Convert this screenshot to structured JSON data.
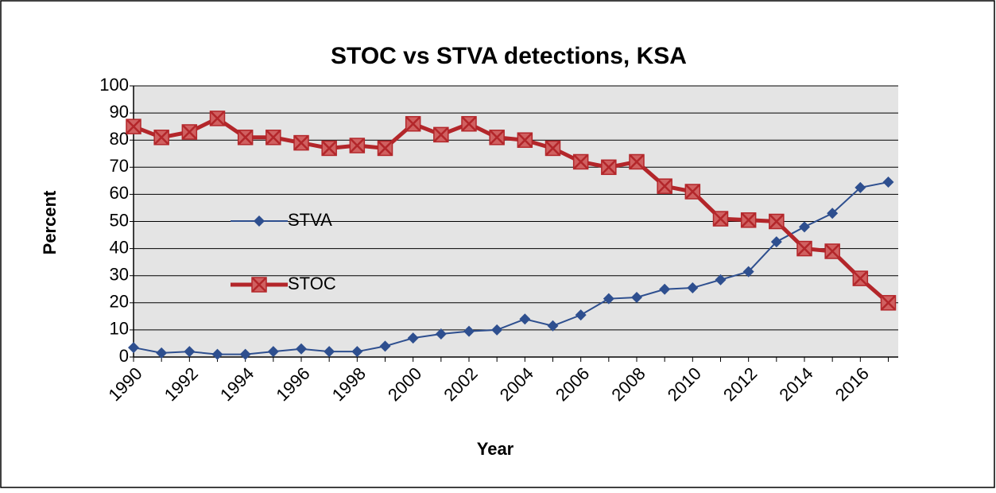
{
  "chart_data": {
    "type": "line",
    "title": "STOC vs STVA detections, KSA",
    "x_label": "Year",
    "y_label": "Percent",
    "categories": [
      "1990",
      null,
      "1992",
      null,
      "1994",
      null,
      "1996",
      null,
      "1998",
      null,
      "2000",
      null,
      "2002",
      null,
      "2004",
      null,
      "2006",
      null,
      "2008",
      null,
      "2010",
      null,
      "2012",
      null,
      "2014",
      null,
      "2016",
      null
    ],
    "series": [
      {
        "name": "STVA",
        "color": "#2e4f8f",
        "marker": "diamond",
        "values": [
          3.5,
          1.5,
          2,
          1,
          1,
          2,
          3,
          2,
          2,
          4,
          7,
          8.5,
          9.5,
          10,
          14,
          11.5,
          15.5,
          21.5,
          22,
          25,
          25.5,
          28.5,
          31.5,
          42.5,
          48,
          53,
          62.5,
          64.5
        ]
      },
      {
        "name": "STOC",
        "color": "#b3262a",
        "marker": "x-square",
        "values": [
          85,
          81,
          83,
          88,
          81,
          81,
          79,
          77,
          78,
          77,
          86,
          82,
          86,
          81,
          80,
          77,
          72,
          70,
          72,
          63,
          61,
          51,
          50.5,
          50,
          40,
          39,
          29,
          20
        ]
      }
    ],
    "ylim": [
      0,
      100
    ],
    "yticks": [
      0,
      10,
      20,
      30,
      40,
      50,
      60,
      70,
      80,
      90,
      100
    ],
    "grid": true,
    "legend": "left"
  }
}
